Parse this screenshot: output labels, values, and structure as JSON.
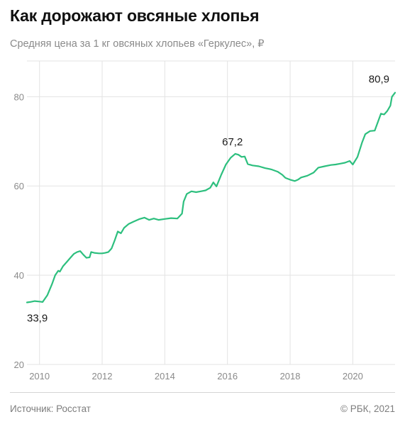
{
  "header": {
    "title": "Как дорожают овсяные хлопья",
    "subtitle": "Средняя цена за 1 кг овсяных хлопьев «Геркулес», ₽"
  },
  "footer": {
    "source": "Источник: Росстат",
    "copyright": "© РБК, 2021"
  },
  "colors": {
    "line": "#2dbf7e",
    "grid": "#e3e3e3",
    "tick_text": "#8a8a8a",
    "label_text": "#1a1a1a"
  },
  "chart_data": {
    "type": "line",
    "title": "Как дорожают овсяные хлопья",
    "subtitle": "Средняя цена за 1 кг овсяных хлопьев «Геркулес», ₽",
    "xlabel": "",
    "ylabel": "",
    "xlim": [
      2009.6,
      2021.35
    ],
    "ylim": [
      20,
      88
    ],
    "y_ticks": [
      20,
      40,
      60,
      80
    ],
    "y_tick_labels": [
      "20",
      "40",
      "60",
      "80"
    ],
    "x_ticks": [
      2010,
      2012,
      2014,
      2016,
      2018,
      2020
    ],
    "x_tick_labels": [
      "2010",
      "2012",
      "2014",
      "2016",
      "2018",
      "2020"
    ],
    "grid": true,
    "legend": "none",
    "series": [
      {
        "points": [
          [
            2009.6,
            33.9
          ],
          [
            2009.7,
            34.0
          ],
          [
            2009.85,
            34.2
          ],
          [
            2010.0,
            34.1
          ],
          [
            2010.1,
            34.0
          ],
          [
            2010.25,
            35.5
          ],
          [
            2010.4,
            38.0
          ],
          [
            2010.5,
            40.0
          ],
          [
            2010.6,
            41.0
          ],
          [
            2010.65,
            40.8
          ],
          [
            2010.75,
            42.0
          ],
          [
            2010.9,
            43.2
          ],
          [
            2011.0,
            44.0
          ],
          [
            2011.1,
            44.8
          ],
          [
            2011.2,
            45.2
          ],
          [
            2011.3,
            45.4
          ],
          [
            2011.4,
            44.6
          ],
          [
            2011.5,
            43.9
          ],
          [
            2011.6,
            44.0
          ],
          [
            2011.65,
            45.2
          ],
          [
            2011.75,
            45.0
          ],
          [
            2011.9,
            44.9
          ],
          [
            2012.0,
            44.9
          ],
          [
            2012.1,
            45.0
          ],
          [
            2012.2,
            45.2
          ],
          [
            2012.3,
            46.0
          ],
          [
            2012.4,
            47.8
          ],
          [
            2012.5,
            49.8
          ],
          [
            2012.6,
            49.4
          ],
          [
            2012.7,
            50.6
          ],
          [
            2012.85,
            51.5
          ],
          [
            2013.0,
            52.0
          ],
          [
            2013.2,
            52.6
          ],
          [
            2013.35,
            52.9
          ],
          [
            2013.5,
            52.4
          ],
          [
            2013.65,
            52.7
          ],
          [
            2013.8,
            52.4
          ],
          [
            2014.0,
            52.6
          ],
          [
            2014.2,
            52.8
          ],
          [
            2014.4,
            52.7
          ],
          [
            2014.55,
            53.8
          ],
          [
            2014.6,
            56.5
          ],
          [
            2014.7,
            58.2
          ],
          [
            2014.85,
            58.8
          ],
          [
            2015.0,
            58.6
          ],
          [
            2015.15,
            58.8
          ],
          [
            2015.3,
            59.0
          ],
          [
            2015.45,
            59.6
          ],
          [
            2015.55,
            60.8
          ],
          [
            2015.65,
            59.9
          ],
          [
            2015.8,
            62.5
          ],
          [
            2015.95,
            64.8
          ],
          [
            2016.1,
            66.3
          ],
          [
            2016.25,
            67.2
          ],
          [
            2016.35,
            67.0
          ],
          [
            2016.45,
            66.5
          ],
          [
            2016.55,
            66.6
          ],
          [
            2016.65,
            64.9
          ],
          [
            2016.8,
            64.6
          ],
          [
            2017.0,
            64.4
          ],
          [
            2017.2,
            64.0
          ],
          [
            2017.4,
            63.7
          ],
          [
            2017.6,
            63.2
          ],
          [
            2017.75,
            62.5
          ],
          [
            2017.85,
            61.8
          ],
          [
            2018.0,
            61.4
          ],
          [
            2018.15,
            61.1
          ],
          [
            2018.25,
            61.4
          ],
          [
            2018.35,
            61.9
          ],
          [
            2018.55,
            62.3
          ],
          [
            2018.75,
            63.0
          ],
          [
            2018.9,
            64.1
          ],
          [
            2019.1,
            64.4
          ],
          [
            2019.3,
            64.7
          ],
          [
            2019.45,
            64.8
          ],
          [
            2019.6,
            65.0
          ],
          [
            2019.75,
            65.2
          ],
          [
            2019.9,
            65.6
          ],
          [
            2020.0,
            64.8
          ],
          [
            2020.15,
            66.5
          ],
          [
            2020.3,
            69.8
          ],
          [
            2020.4,
            71.6
          ],
          [
            2020.55,
            72.3
          ],
          [
            2020.7,
            72.4
          ],
          [
            2020.8,
            74.3
          ],
          [
            2020.9,
            76.2
          ],
          [
            2021.0,
            76.0
          ],
          [
            2021.1,
            76.8
          ],
          [
            2021.2,
            78.0
          ],
          [
            2021.25,
            80.0
          ],
          [
            2021.35,
            80.9
          ]
        ]
      }
    ],
    "annotations": [
      {
        "x": 2009.6,
        "y": 33.9,
        "text": "33,9"
      },
      {
        "x": 2016.25,
        "y": 67.2,
        "text": "67,2"
      },
      {
        "x": 2021.35,
        "y": 80.9,
        "text": "80,9"
      }
    ]
  }
}
